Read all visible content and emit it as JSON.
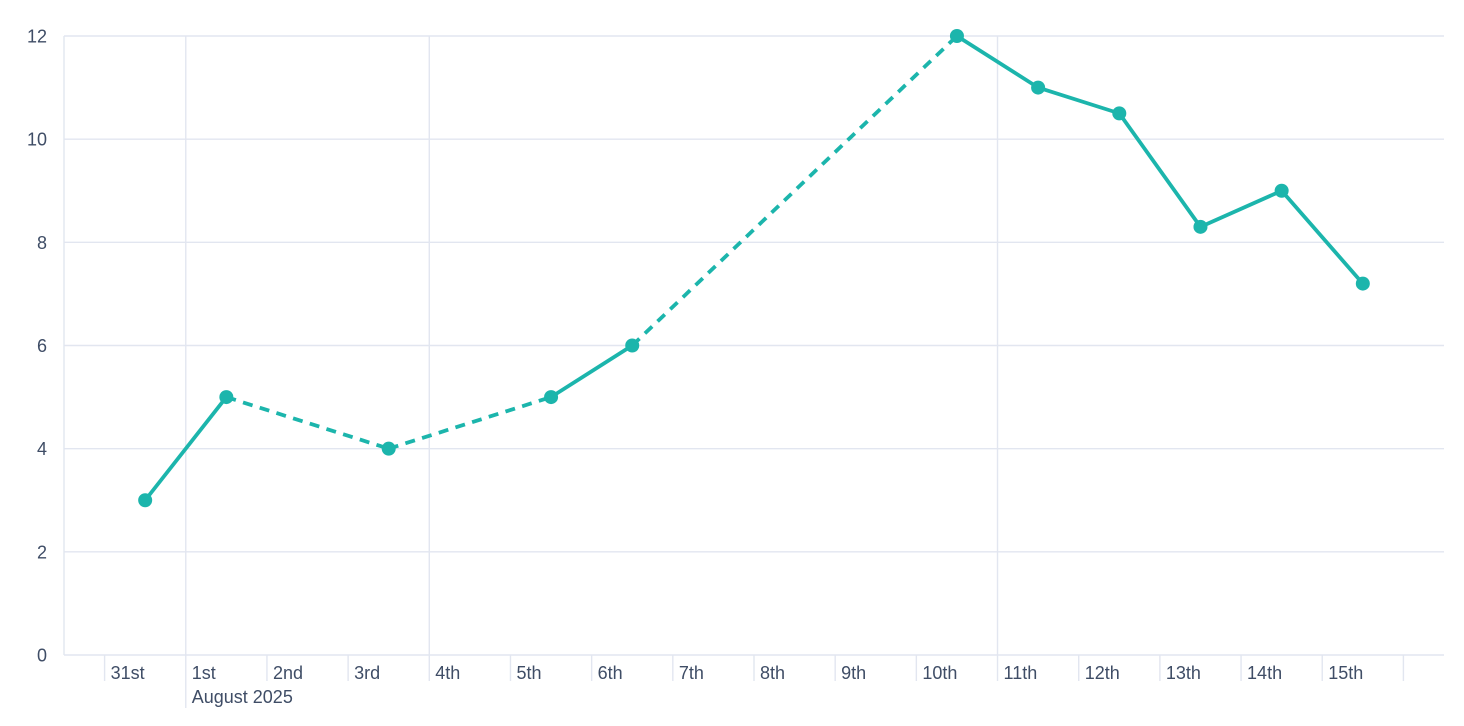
{
  "chart_data": {
    "type": "line",
    "title": "",
    "xlabel": "",
    "ylabel": "",
    "ylim": [
      0,
      12
    ],
    "grid": true,
    "legend": false,
    "series": [
      {
        "name": "series-1",
        "color": "#1CB5AC",
        "marker": "circle",
        "points": [
          {
            "day": "31st",
            "value": 3,
            "segment_to_next": "solid"
          },
          {
            "day": "1st",
            "value": 5,
            "segment_to_next": "dashed"
          },
          {
            "day": "3rd",
            "value": 4,
            "segment_to_next": "dashed"
          },
          {
            "day": "5th",
            "value": 5,
            "segment_to_next": "solid"
          },
          {
            "day": "6th",
            "value": 6,
            "segment_to_next": "dashed"
          },
          {
            "day": "10th",
            "value": 12,
            "segment_to_next": "solid"
          },
          {
            "day": "11th",
            "value": 11,
            "segment_to_next": "solid"
          },
          {
            "day": "12th",
            "value": 10.5,
            "segment_to_next": "solid"
          },
          {
            "day": "13th",
            "value": 8.3,
            "segment_to_next": "solid"
          },
          {
            "day": "14th",
            "value": 9,
            "segment_to_next": "solid"
          },
          {
            "day": "15th",
            "value": 7.2,
            "segment_to_next": "none"
          }
        ]
      }
    ],
    "x_axis": {
      "tick_labels": [
        "31st",
        "1st",
        "2nd",
        "3rd",
        "4th",
        "5th",
        "6th",
        "7th",
        "8th",
        "9th",
        "10th",
        "11th",
        "12th",
        "13th",
        "14th",
        "15th",
        ""
      ],
      "secondary_label": "August 2025",
      "secondary_label_under_tick": "1st",
      "month_boundary_tick": "1st",
      "week_gridline_ticks": [
        "1st",
        "4th",
        "11th"
      ]
    },
    "y_axis": {
      "tick_labels": [
        "0",
        "2",
        "4",
        "6",
        "8",
        "10",
        "12"
      ],
      "min": 0,
      "max": 12
    }
  },
  "colors": {
    "line": "#1CB5AC",
    "grid": "#E2E6F0",
    "axis_line": "#E2E6F0",
    "tick_mark": "#E2E6F0",
    "axis_text": "#3F4D66",
    "background": "#FFFFFF"
  }
}
